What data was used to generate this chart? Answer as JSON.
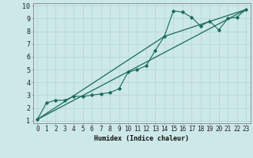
{
  "xlabel": "Humidex (Indice chaleur)",
  "background_color": "#cce8e8",
  "grid_color": "#b8d8d8",
  "line_color": "#1a6b5a",
  "xlim": [
    -0.5,
    23.5
  ],
  "ylim": [
    0.8,
    10.2
  ],
  "xticks": [
    0,
    1,
    2,
    3,
    4,
    5,
    6,
    7,
    8,
    9,
    10,
    11,
    12,
    13,
    14,
    15,
    16,
    17,
    18,
    19,
    20,
    21,
    22,
    23
  ],
  "yticks": [
    1,
    2,
    3,
    4,
    5,
    6,
    7,
    8,
    9,
    10
  ],
  "line1_x": [
    0,
    1,
    2,
    3,
    4,
    5,
    6,
    7,
    8,
    9,
    10,
    11,
    12,
    13,
    14,
    15,
    16,
    17,
    18,
    19,
    20,
    21,
    22,
    23
  ],
  "line1_y": [
    1.1,
    2.4,
    2.6,
    2.6,
    2.9,
    2.9,
    3.0,
    3.1,
    3.2,
    3.5,
    4.8,
    5.0,
    5.3,
    6.5,
    7.6,
    9.6,
    9.5,
    9.1,
    8.4,
    8.8,
    8.1,
    9.0,
    9.1,
    9.7
  ],
  "line2_x": [
    0,
    23
  ],
  "line2_y": [
    1.1,
    9.7
  ],
  "line3_x": [
    0,
    14,
    23
  ],
  "line3_y": [
    1.1,
    7.6,
    9.7
  ],
  "xlabel_fontsize": 6.0,
  "tick_fontsize": 5.5
}
